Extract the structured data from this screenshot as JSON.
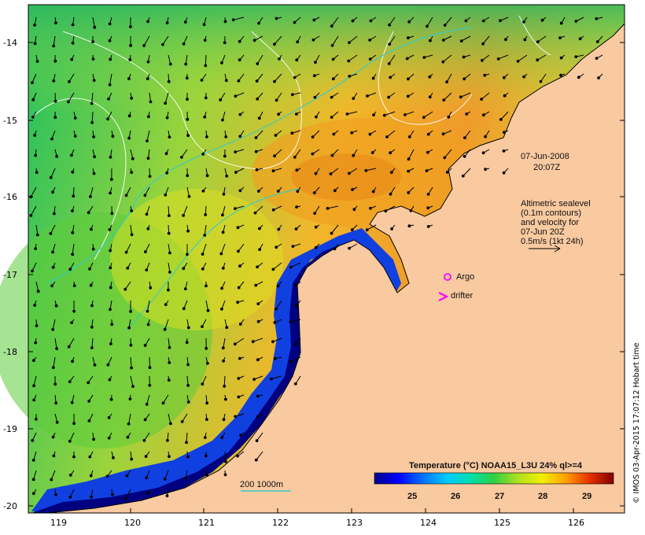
{
  "map": {
    "date": "07-Jun-2008",
    "time": "20:07Z",
    "altimetry_note": [
      "Altimetric sealevel",
      "(0.1m contours)",
      "and velocity for",
      "07-Jun 20Z",
      "0.5m/s (1kt 24h)"
    ],
    "legend_argo": "Argo",
    "legend_drifter": "drifter",
    "scale_label": "200  1000m",
    "colorbar_title": "Temperature (°C) NOAA15_L3U 24% ql>=4",
    "colorbar_ticks": [
      "25",
      "26",
      "27",
      "28",
      "29"
    ],
    "credit": "© IMOS 03-Apr-2015 17:07:12 Hobart time",
    "lon_ticks": [
      "119",
      "120",
      "121",
      "122",
      "123",
      "124",
      "125",
      "126"
    ],
    "lat_ticks": [
      "-14",
      "-15",
      "-16",
      "-17",
      "-18",
      "-19",
      "-20"
    ],
    "colors": {
      "land": "#f9c9a0",
      "argo": "#ff00ff",
      "drifter": "#ff00ff",
      "isobath": "#33cccc",
      "colormap": [
        "#00008b",
        "#0000ff",
        "#00a0ff",
        "#00e0d0",
        "#30d060",
        "#a0e030",
        "#f0f000",
        "#ffb000",
        "#ff7000",
        "#e02000",
        "#800000"
      ]
    }
  }
}
